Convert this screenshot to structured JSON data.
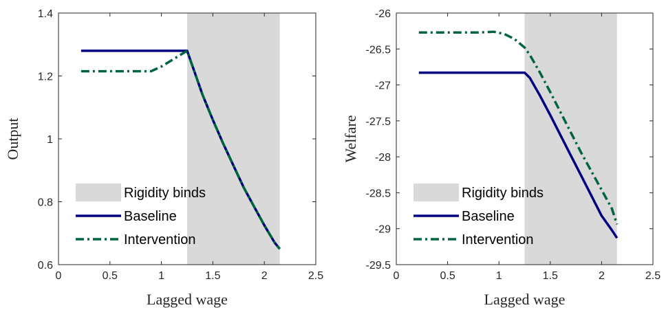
{
  "colors": {
    "baseline": "#000080",
    "intervention": "#00643C",
    "shade": "#D9D9D9",
    "axis": "#262626"
  },
  "legend": {
    "items": [
      {
        "label": "Rigidity binds",
        "style": "patch"
      },
      {
        "label": "Baseline",
        "style": "solid"
      },
      {
        "label": "Intervention",
        "style": "dashdot"
      }
    ]
  },
  "chart_data": [
    {
      "type": "line",
      "xlabel": "Lagged wage",
      "ylabel": "Output",
      "xlim": [
        0,
        2.5
      ],
      "ylim": [
        0.6,
        1.4
      ],
      "xticks": [
        "0",
        "0.5",
        "1",
        "1.5",
        "2",
        "2.5"
      ],
      "yticks": [
        "0.6",
        "0.8",
        "1",
        "1.2",
        "1.4"
      ],
      "grid": false,
      "legend_position": "bottom-left",
      "shaded_region": {
        "label": "Rigidity binds",
        "x": [
          1.25,
          2.15
        ]
      },
      "series": [
        {
          "name": "Baseline",
          "style": "solid",
          "x": [
            0.22,
            1.0,
            1.25,
            1.4,
            1.5,
            1.6,
            1.7,
            1.8,
            1.9,
            2.0,
            2.1,
            2.15
          ],
          "y": [
            1.28,
            1.28,
            1.28,
            1.14,
            1.06,
            0.985,
            0.915,
            0.845,
            0.785,
            0.725,
            0.67,
            0.65
          ]
        },
        {
          "name": "Intervention",
          "style": "dashdot",
          "x": [
            0.22,
            0.9,
            1.0,
            1.1,
            1.25,
            1.4,
            1.5,
            1.6,
            1.7,
            1.8,
            1.9,
            2.0,
            2.1,
            2.15
          ],
          "y": [
            1.215,
            1.215,
            1.23,
            1.25,
            1.28,
            1.14,
            1.06,
            0.985,
            0.915,
            0.845,
            0.785,
            0.725,
            0.67,
            0.65
          ]
        }
      ]
    },
    {
      "type": "line",
      "xlabel": "Lagged wage",
      "ylabel": "Welfare",
      "xlim": [
        0,
        2.5
      ],
      "ylim": [
        -29.5,
        -26
      ],
      "xticks": [
        "0",
        "0.5",
        "1",
        "1.5",
        "2",
        "2.5"
      ],
      "yticks": [
        "-29.5",
        "-29",
        "-28.5",
        "-28",
        "-27.5",
        "-27",
        "-26.5",
        "-26"
      ],
      "grid": false,
      "legend_position": "bottom-left",
      "shaded_region": {
        "label": "Rigidity binds",
        "x": [
          1.25,
          2.15
        ]
      },
      "series": [
        {
          "name": "Baseline",
          "style": "solid",
          "x": [
            0.22,
            1.0,
            1.25,
            1.3,
            1.4,
            1.5,
            1.6,
            1.7,
            1.8,
            1.9,
            2.0,
            2.1,
            2.15
          ],
          "y": [
            -26.83,
            -26.83,
            -26.83,
            -26.9,
            -27.15,
            -27.42,
            -27.7,
            -27.98,
            -28.26,
            -28.54,
            -28.82,
            -29.02,
            -29.13
          ]
        },
        {
          "name": "Intervention",
          "style": "dashdot",
          "x": [
            0.22,
            0.8,
            0.95,
            1.05,
            1.15,
            1.25,
            1.3,
            1.4,
            1.5,
            1.6,
            1.7,
            1.8,
            1.9,
            2.0,
            2.1,
            2.15
          ],
          "y": [
            -26.27,
            -26.27,
            -26.26,
            -26.29,
            -26.36,
            -26.48,
            -26.58,
            -26.83,
            -27.1,
            -27.38,
            -27.66,
            -27.94,
            -28.2,
            -28.46,
            -28.72,
            -28.94
          ]
        }
      ]
    }
  ]
}
